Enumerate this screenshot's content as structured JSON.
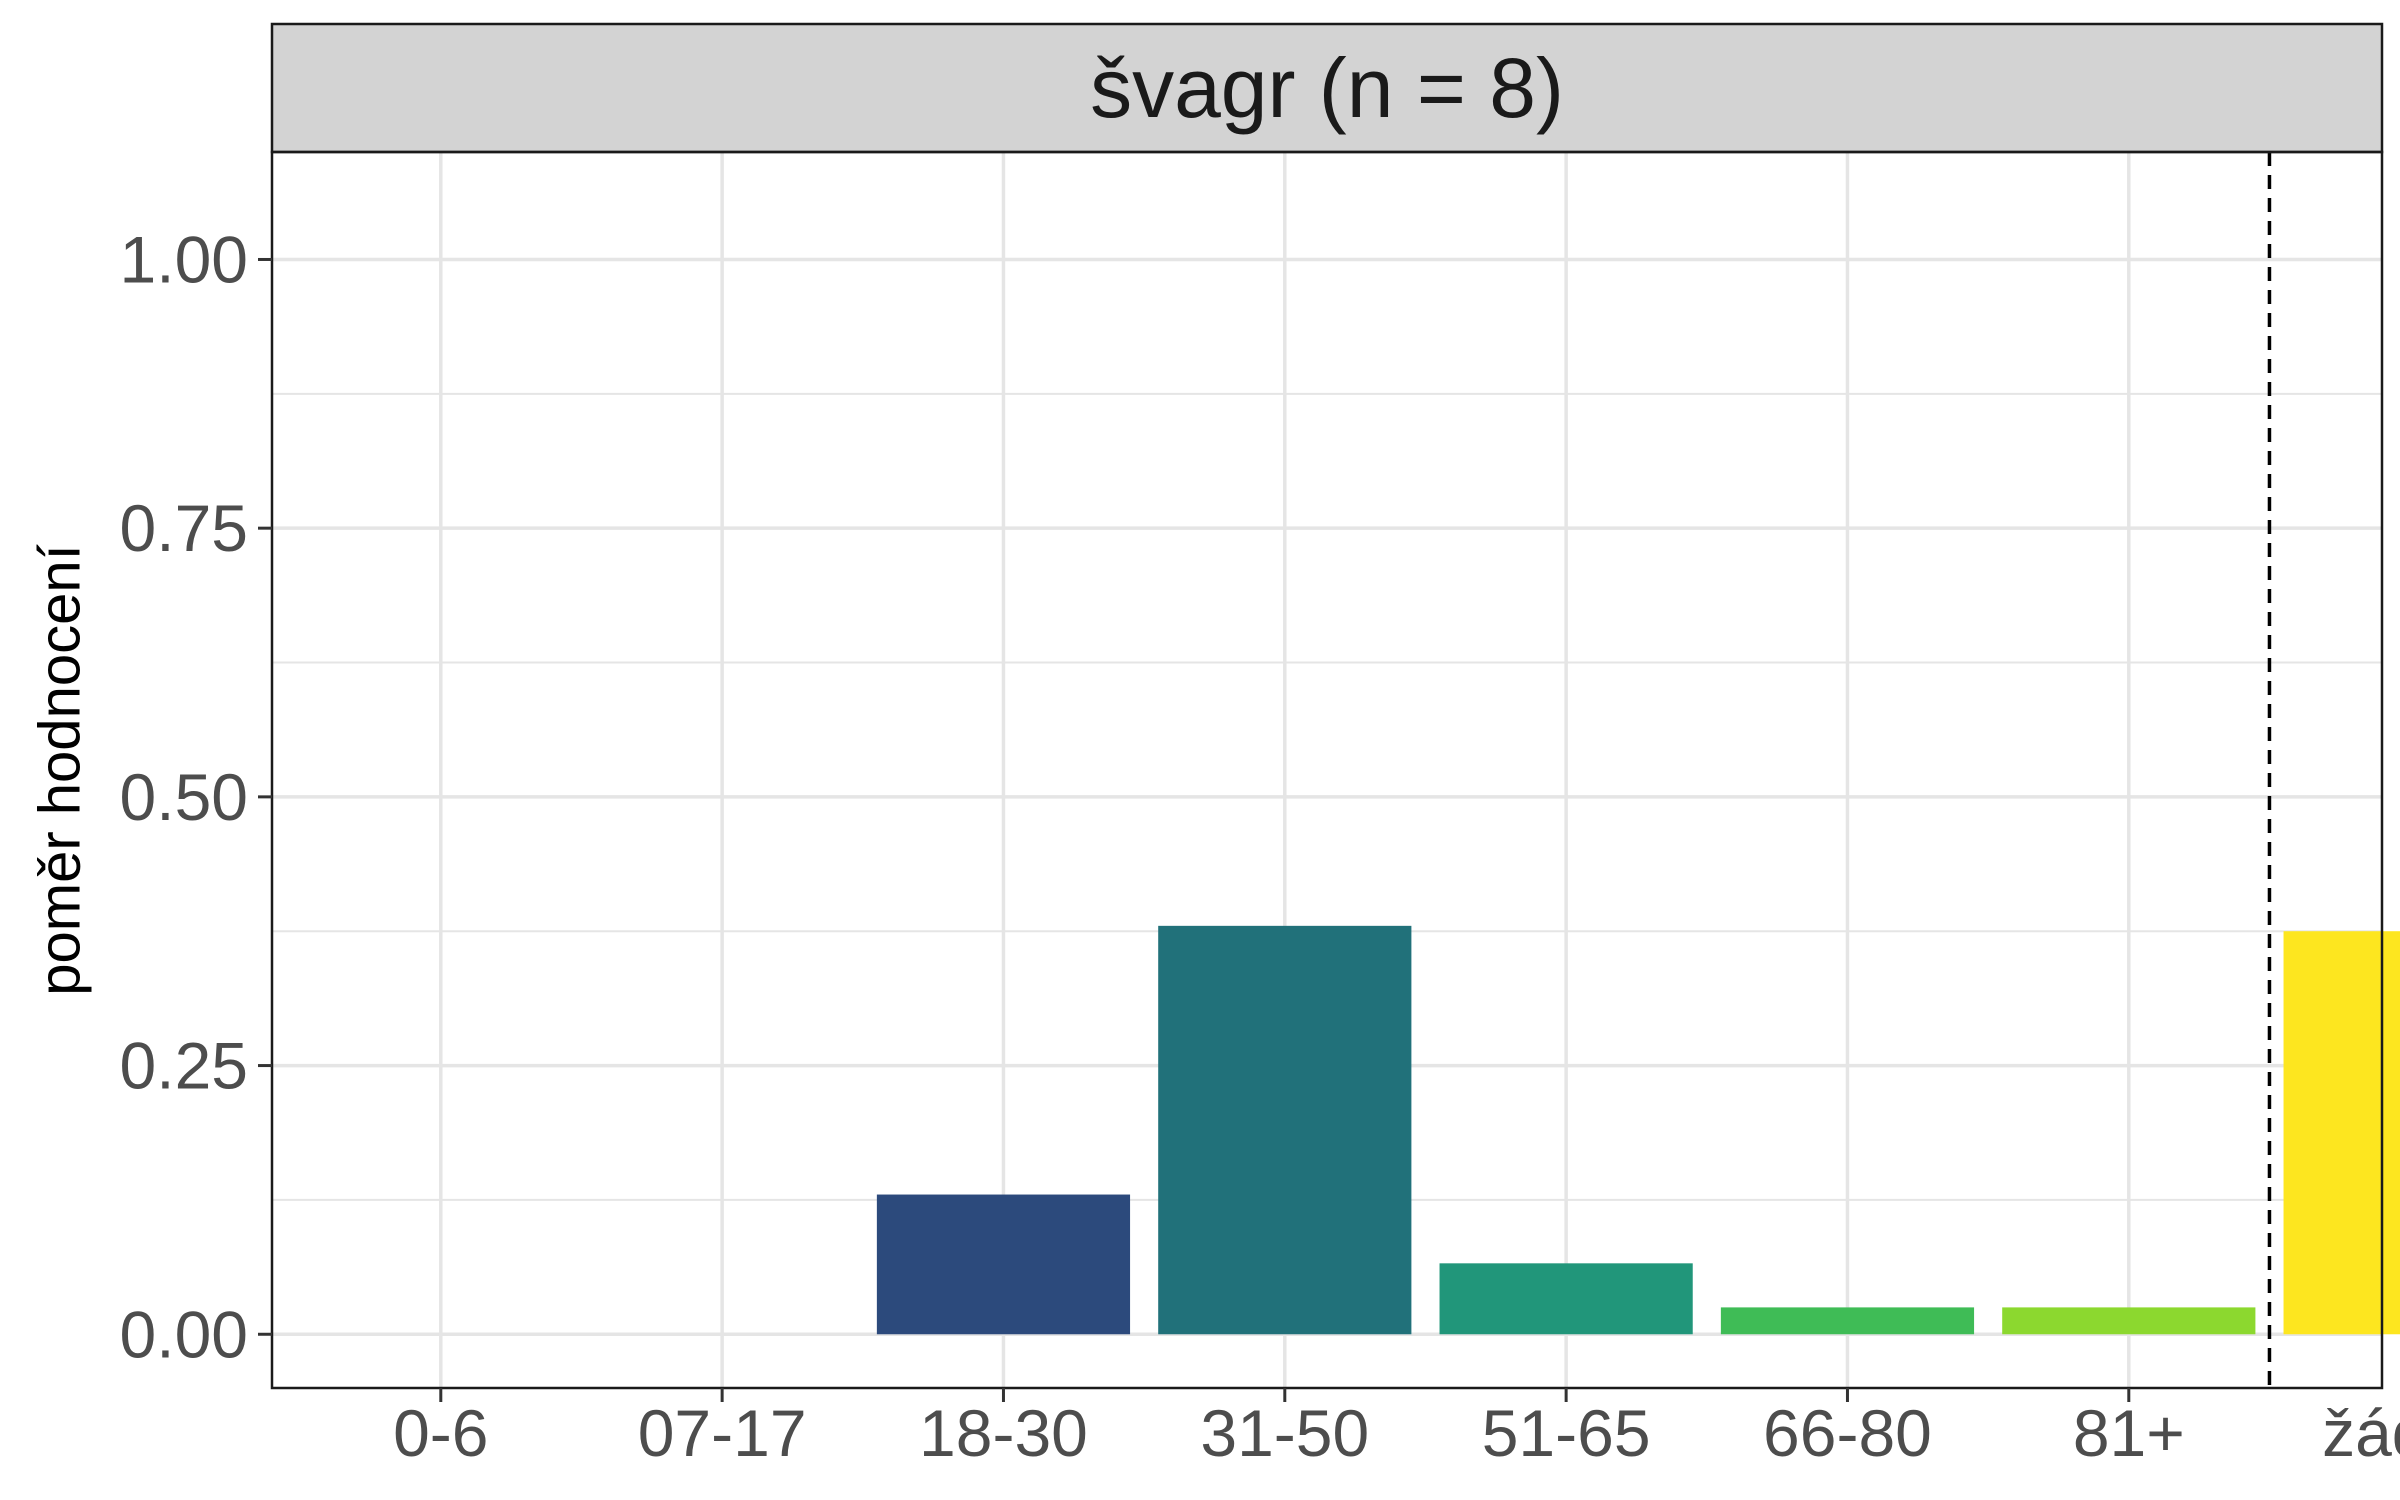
{
  "chart_data": {
    "type": "bar",
    "title": "švagr (n = 8)",
    "xlabel": "",
    "ylabel": "poměr hodnocení",
    "categories": [
      "0-6",
      "07-17",
      "18-30",
      "31-50",
      "51-65",
      "66-80",
      "81+",
      "žádný"
    ],
    "values": [
      0,
      0,
      0.13,
      0.38,
      0.066,
      0.025,
      0.025,
      0.375
    ],
    "colors": [
      "#440154",
      "#46327e",
      "#2c4a7c",
      "#21717a",
      "#21967a",
      "#3fbc56",
      "#8cd82f",
      "#fde61f"
    ],
    "ylim": [
      -0.05,
      1.1
    ],
    "yticks": [
      0,
      0.25,
      0.5,
      0.75,
      1
    ],
    "ytick_labels": [
      "0.00",
      "0.25",
      "0.50",
      "0.75",
      "1.00"
    ],
    "grid": true,
    "reference_line": {
      "between": [
        "81+",
        "žádný"
      ],
      "style": "dashed",
      "color": "#000000"
    },
    "strip_color": "#d3d3d3",
    "panel_border_color": "#1a1a1a",
    "grid_color": "#e5e5e5"
  }
}
